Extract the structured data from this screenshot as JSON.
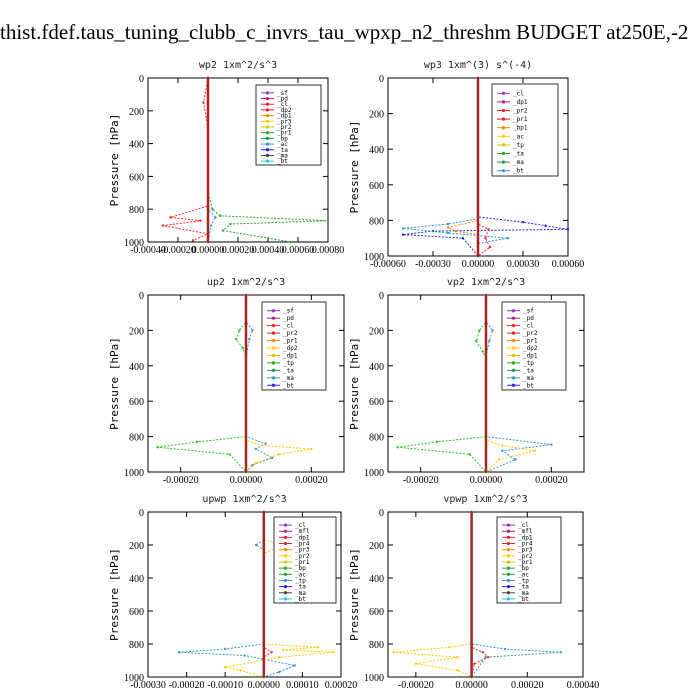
{
  "figure_title": "thist.fdef.taus_tuning_clubb_c_invrs_tau_wpxp_n2_threshm  BUDGET at250E,-2",
  "chart_data": [
    {
      "id": "wp2",
      "type": "line",
      "title": "wp2   1xm^2/s^3",
      "ylabel": "Pressure [hPa]",
      "xlim": [
        -0.0004,
        0.0008
      ],
      "ylim": [
        1000,
        0
      ],
      "y_inverted": true,
      "xticks": [
        -0.0004,
        -0.0002,
        0,
        0.0002,
        0.0004,
        0.0006,
        0.0008
      ],
      "xtick_labels": [
        "-0.00040",
        "-0.00020",
        "0.00000",
        "0.00020",
        "0.00040",
        "0.00060",
        "0.00080"
      ],
      "yticks": [
        0,
        200,
        400,
        600,
        800,
        1000
      ],
      "ytick_labels": [
        "0",
        "200",
        "400",
        "600",
        "800",
        "1000"
      ],
      "legend": [
        "_sf",
        "_pd",
        "_cl",
        "_dp2",
        "_dp1",
        "_pr3",
        "_pr2",
        "_pr1",
        "_bp",
        "_ac",
        "_ta",
        "_ma",
        "_bt"
      ],
      "series": [
        {
          "color": "#22aa22",
          "points": [
            [
              0,
              0
            ],
            [
              0,
              700
            ],
            [
              3e-05,
              800
            ],
            [
              8e-05,
              840
            ],
            [
              0.0008,
              870
            ],
            [
              0.00015,
              890
            ],
            [
              0.0001,
              930
            ],
            [
              0.00055,
              1000
            ]
          ]
        },
        {
          "color": "#ff2222",
          "points": [
            [
              0,
              0
            ],
            [
              -3e-05,
              150
            ],
            [
              0,
              300
            ],
            [
              0,
              780
            ],
            [
              -0.00025,
              850
            ],
            [
              -5e-05,
              870
            ],
            [
              -0.0003,
              900
            ],
            [
              0,
              950
            ],
            [
              -0.0001,
              990
            ]
          ]
        },
        {
          "color": "#3399ff",
          "points": [
            [
              0,
              0
            ],
            [
              0,
              800
            ],
            [
              5e-05,
              850
            ],
            [
              2e-05,
              900
            ],
            [
              0,
              1000
            ]
          ]
        },
        {
          "color": "#aa2222",
          "points": [
            [
              0,
              0
            ],
            [
              0,
              1000
            ]
          ]
        }
      ]
    },
    {
      "id": "wp3",
      "type": "line",
      "title": "wp3   1xm^(3) s^(-4)",
      "ylabel": "Pressure [hPa]",
      "xlim": [
        -0.0006,
        0.0006
      ],
      "ylim": [
        1000,
        0
      ],
      "y_inverted": true,
      "xticks": [
        -0.0006,
        -0.0003,
        0,
        0.0003,
        0.0006
      ],
      "xtick_labels": [
        "-0.00060",
        "-0.00030",
        "0.00000",
        "0.00030",
        "0.00060"
      ],
      "yticks": [
        0,
        200,
        400,
        600,
        800,
        1000
      ],
      "ytick_labels": [
        "0",
        "200",
        "400",
        "600",
        "800",
        "1000"
      ],
      "legend": [
        "_cl",
        "_dp1",
        "_pr2",
        "_pr1",
        "_bp1",
        "_ac",
        "_tp",
        "_ta",
        "_ma",
        "_bt"
      ],
      "series": [
        {
          "color": "#2222dd",
          "points": [
            [
              0,
              0
            ],
            [
              0,
              780
            ],
            [
              0.0003,
              810
            ],
            [
              0.00045,
              830
            ],
            [
              0.0006,
              850
            ],
            [
              -0.0003,
              860
            ],
            [
              -0.0005,
              880
            ],
            [
              -0.0001,
              900
            ],
            [
              0,
              1000
            ]
          ]
        },
        {
          "color": "#2299cc",
          "points": [
            [
              0,
              0
            ],
            [
              0,
              790
            ],
            [
              -0.0002,
              820
            ],
            [
              -0.0005,
              845
            ],
            [
              -0.0002,
              870
            ],
            [
              0.0002,
              900
            ],
            [
              0,
              930
            ]
          ]
        },
        {
          "color": "#ff8800",
          "points": [
            [
              0,
              0
            ],
            [
              0,
              800
            ],
            [
              -0.0002,
              840
            ],
            [
              -0.00015,
              860
            ],
            [
              0,
              880
            ]
          ]
        },
        {
          "color": "#ff2222",
          "points": [
            [
              0,
              0
            ],
            [
              0,
              820
            ],
            [
              7e-05,
              850
            ],
            [
              5e-05,
              900
            ],
            [
              8e-05,
              950
            ],
            [
              0,
              1000
            ]
          ]
        },
        {
          "color": "#aa2222",
          "points": [
            [
              0,
              0
            ],
            [
              0,
              1000
            ]
          ]
        }
      ]
    },
    {
      "id": "up2",
      "type": "line",
      "title": "up2   1xm^2/s^3",
      "ylabel": "Pressure [hPa]",
      "xlim": [
        -0.0003,
        0.0003
      ],
      "ylim": [
        1000,
        0
      ],
      "y_inverted": true,
      "xticks": [
        -0.0002,
        0,
        0.0002
      ],
      "xtick_labels": [
        "-0.00020",
        "0.00000",
        "0.00020"
      ],
      "yticks": [
        0,
        200,
        400,
        600,
        800,
        1000
      ],
      "ytick_labels": [
        "0",
        "200",
        "400",
        "600",
        "800",
        "1000"
      ],
      "legend": [
        "_sf",
        "_pd",
        "_cl",
        "_pr2",
        "_pr1",
        "_dp2",
        "_dp1",
        "_tp",
        "_ta",
        "_ma",
        "_bt"
      ],
      "series": [
        {
          "color": "#22cc22",
          "points": [
            [
              0,
              0
            ],
            [
              0,
              150
            ],
            [
              -2e-05,
              200
            ],
            [
              -3e-05,
              250
            ],
            [
              -1e-05,
              300
            ],
            [
              0,
              350
            ],
            [
              0,
              800
            ],
            [
              -0.00015,
              830
            ],
            [
              -0.00027,
              860
            ],
            [
              -5e-05,
              900
            ],
            [
              0,
              1000
            ]
          ]
        },
        {
          "color": "#3399cc",
          "points": [
            [
              0,
              0
            ],
            [
              0,
              150
            ],
            [
              2e-05,
              200
            ],
            [
              1e-05,
              250
            ],
            [
              0,
              350
            ],
            [
              0,
              800
            ],
            [
              6e-05,
              840
            ],
            [
              3e-05,
              870
            ],
            [
              8e-05,
              920
            ],
            [
              2e-05,
              960
            ],
            [
              0,
              1000
            ]
          ]
        },
        {
          "color": "#ffcc00",
          "points": [
            [
              0,
              0
            ],
            [
              0,
              820
            ],
            [
              5e-05,
              850
            ],
            [
              0.0002,
              870
            ],
            [
              0.0001,
              900
            ],
            [
              3e-05,
              950
            ],
            [
              0,
              1000
            ]
          ]
        },
        {
          "color": "#aa2222",
          "points": [
            [
              0,
              0
            ],
            [
              0,
              1000
            ]
          ]
        }
      ]
    },
    {
      "id": "vp2",
      "type": "line",
      "title": "vp2   1xm^2/s^3",
      "ylabel": "Pressure [hPa]",
      "xlim": [
        -0.0003,
        0.0003
      ],
      "ylim": [
        1000,
        0
      ],
      "y_inverted": true,
      "xticks": [
        -0.0002,
        0,
        0.0002
      ],
      "xtick_labels": [
        "-0.00020",
        "0.00000",
        "0.00020"
      ],
      "yticks": [
        0,
        200,
        400,
        600,
        800,
        1000
      ],
      "ytick_labels": [
        "0",
        "200",
        "400",
        "600",
        "800",
        "1000"
      ],
      "legend": [
        "_sf",
        "_pd",
        "_cl",
        "_pr2",
        "_pr1",
        "_dp2",
        "_dp1",
        "_tp",
        "_ta",
        "_ma",
        "_bt"
      ],
      "series": [
        {
          "color": "#22cc22",
          "points": [
            [
              0,
              0
            ],
            [
              0,
              150
            ],
            [
              -2e-05,
              200
            ],
            [
              -3e-05,
              260
            ],
            [
              -1e-05,
              320
            ],
            [
              0,
              360
            ],
            [
              0,
              800
            ],
            [
              -0.00015,
              830
            ],
            [
              -0.00027,
              860
            ],
            [
              -5e-05,
              900
            ],
            [
              0,
              1000
            ]
          ]
        },
        {
          "color": "#3399cc",
          "points": [
            [
              0,
              0
            ],
            [
              0,
              150
            ],
            [
              2e-05,
              200
            ],
            [
              1e-05,
              260
            ],
            [
              0,
              350
            ],
            [
              0,
              800
            ],
            [
              0.0002,
              845
            ],
            [
              5e-05,
              880
            ],
            [
              9e-05,
              930
            ],
            [
              0,
              1000
            ]
          ]
        },
        {
          "color": "#ffcc00",
          "points": [
            [
              0,
              0
            ],
            [
              0,
              820
            ],
            [
              5e-05,
              850
            ],
            [
              0.00015,
              880
            ],
            [
              4e-05,
              930
            ],
            [
              0,
              1000
            ]
          ]
        },
        {
          "color": "#aa2222",
          "points": [
            [
              0,
              0
            ],
            [
              0,
              1000
            ]
          ]
        }
      ]
    },
    {
      "id": "upwp",
      "type": "line",
      "title": "upwp   1xm^2/s^3",
      "ylabel": "Pressure [hPa]",
      "xlim": [
        -0.0003,
        0.0002
      ],
      "ylim": [
        1000,
        0
      ],
      "y_inverted": true,
      "xticks": [
        -0.0003,
        -0.0002,
        -0.0001,
        0,
        0.0001,
        0.0002
      ],
      "xtick_labels": [
        "-0.00030",
        "-0.00020",
        "-0.00010",
        "0.00000",
        "0.00010",
        "0.00020"
      ],
      "yticks": [
        0,
        200,
        400,
        600,
        800,
        1000
      ],
      "ytick_labels": [
        "0",
        "200",
        "400",
        "600",
        "800",
        "1000"
      ],
      "legend": [
        "_cl",
        "_mfl",
        "_dp1",
        "_pr4",
        "_pr3",
        "_pr2",
        "_pr1",
        "_bp",
        "_ac",
        "_tp",
        "_ta",
        "_ma",
        "_bt"
      ],
      "series": [
        {
          "color": "#3399cc",
          "points": [
            [
              0,
              0
            ],
            [
              0,
              170
            ],
            [
              -2e-05,
              200
            ],
            [
              0,
              230
            ],
            [
              0,
              800
            ],
            [
              -0.0001,
              830
            ],
            [
              -0.00022,
              850
            ],
            [
              -5e-05,
              870
            ],
            [
              8e-05,
              930
            ],
            [
              4e-05,
              970
            ],
            [
              0,
              1000
            ]
          ]
        },
        {
          "color": "#ffcc00",
          "points": [
            [
              0,
              0
            ],
            [
              0,
              170
            ],
            [
              4e-05,
              190
            ],
            [
              3e-05,
              220
            ],
            [
              0,
              250
            ],
            [
              0,
              800
            ],
            [
              0.00014,
              820
            ],
            [
              5e-05,
              835
            ],
            [
              0.00018,
              850
            ],
            [
              4e-05,
              880
            ],
            [
              -0.0001,
              940
            ],
            [
              -6e-05,
              960
            ],
            [
              0,
              1000
            ]
          ]
        },
        {
          "color": "#ff2222",
          "points": [
            [
              0,
              0
            ],
            [
              0,
              820
            ],
            [
              2e-05,
              850
            ],
            [
              0,
              880
            ],
            [
              0,
              1000
            ]
          ]
        },
        {
          "color": "#aa2222",
          "points": [
            [
              0,
              0
            ],
            [
              0,
              1000
            ]
          ]
        }
      ]
    },
    {
      "id": "vpwp",
      "type": "line",
      "title": "vpwp   1xm^2/s^3",
      "ylabel": "Pressure [hPa]",
      "xlim": [
        -0.0003,
        0.0004
      ],
      "ylim": [
        1000,
        0
      ],
      "y_inverted": true,
      "xticks": [
        -0.0002,
        0,
        0.0002,
        0.0004
      ],
      "xtick_labels": [
        "-0.00020",
        "0.00000",
        "0.00020",
        "0.00040"
      ],
      "yticks": [
        0,
        200,
        400,
        600,
        800,
        1000
      ],
      "ytick_labels": [
        "0",
        "200",
        "400",
        "600",
        "800",
        "1000"
      ],
      "legend": [
        "_cl",
        "_mfl",
        "_dp1",
        "_pr4",
        "_pr3",
        "_pr2",
        "_pr1",
        "_bp",
        "_ac",
        "_tp",
        "_ta",
        "_ma",
        "_bt"
      ],
      "series": [
        {
          "color": "#ffcc00",
          "points": [
            [
              0,
              0
            ],
            [
              0,
              800
            ],
            [
              -8e-05,
              820
            ],
            [
              -0.00028,
              850
            ],
            [
              -5e-05,
              880
            ],
            [
              -0.0002,
              920
            ],
            [
              -5e-05,
              960
            ],
            [
              0,
              1000
            ]
          ]
        },
        {
          "color": "#3399cc",
          "points": [
            [
              0,
              0
            ],
            [
              0,
              800
            ],
            [
              0.00012,
              830
            ],
            [
              0.00032,
              850
            ],
            [
              5e-05,
              880
            ],
            [
              0,
              1000
            ]
          ]
        },
        {
          "color": "#ff2222",
          "points": [
            [
              0,
              0
            ],
            [
              0,
              820
            ],
            [
              4e-05,
              850
            ],
            [
              6e-05,
              880
            ],
            [
              1e-05,
              920
            ],
            [
              0,
              1000
            ]
          ]
        },
        {
          "color": "#aa2222",
          "points": [
            [
              0,
              0
            ],
            [
              0,
              1000
            ]
          ]
        }
      ]
    }
  ]
}
